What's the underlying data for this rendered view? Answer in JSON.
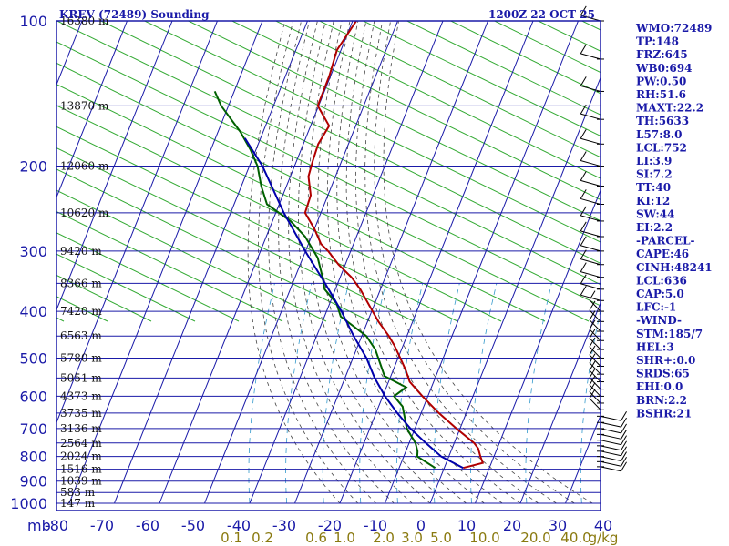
{
  "chart_data": {
    "type": "line",
    "title": "KREV (72489) Sounding",
    "datetime": "1200Z 22 OCT 25",
    "y_axis": {
      "scale": "log-pressure",
      "unit": "mb",
      "range": [
        1000,
        100
      ],
      "ticks": [
        "100",
        "200",
        "300",
        "400",
        "500",
        "600",
        "700",
        "800",
        "900",
        "1000"
      ]
    },
    "x_axis": {
      "unit": "C",
      "range": [
        -80,
        40
      ],
      "skew": true,
      "ticks": [
        "-80",
        "-70",
        "-60",
        "-50",
        "-40",
        "-30",
        "-20",
        "-10",
        "0",
        "10",
        "20",
        "30",
        "40"
      ],
      "unit_label": "mb"
    },
    "mixing_ratio_labels": [
      "0.1",
      "0.2",
      "0.6",
      "1.0",
      "2.0",
      "3.0",
      "5.0",
      "10.0",
      "20.0",
      "40.0",
      "g/kg"
    ],
    "height_labels": [
      {
        "p": 100,
        "text": "16380 m"
      },
      {
        "p": 150,
        "text": "13870 m"
      },
      {
        "p": 200,
        "text": "12060 m"
      },
      {
        "p": 250,
        "text": "10620 m"
      },
      {
        "p": 300,
        "text": "9420 m"
      },
      {
        "p": 350,
        "text": "8366 m"
      },
      {
        "p": 400,
        "text": "7420 m"
      },
      {
        "p": 450,
        "text": "6563 m"
      },
      {
        "p": 500,
        "text": "5780 m"
      },
      {
        "p": 550,
        "text": "5051 m"
      },
      {
        "p": 600,
        "text": "4373 m"
      },
      {
        "p": 650,
        "text": "3735 m"
      },
      {
        "p": 700,
        "text": "3136 m"
      },
      {
        "p": 750,
        "text": "2564 m"
      },
      {
        "p": 800,
        "text": "2024 m"
      },
      {
        "p": 850,
        "text": "1516 m"
      },
      {
        "p": 900,
        "text": "1039 m"
      },
      {
        "p": 950,
        "text": "583 m"
      },
      {
        "p": 1000,
        "text": "147 m"
      }
    ],
    "series": [
      {
        "name": "Temperature",
        "color": "#b00000",
        "points": [
          [
            845,
            4.2
          ],
          [
            825,
            8.1
          ],
          [
            800,
            7.0
          ],
          [
            770,
            5.8
          ],
          [
            750,
            4.4
          ],
          [
            700,
            -0.8
          ],
          [
            650,
            -6.1
          ],
          [
            600,
            -11.2
          ],
          [
            560,
            -15.3
          ],
          [
            530,
            -17.2
          ],
          [
            500,
            -19.5
          ],
          [
            470,
            -22.0
          ],
          [
            450,
            -24.0
          ],
          [
            420,
            -27.6
          ],
          [
            400,
            -29.8
          ],
          [
            360,
            -34.5
          ],
          [
            340,
            -37.5
          ],
          [
            320,
            -41.5
          ],
          [
            300,
            -45.0
          ],
          [
            290,
            -47.2
          ],
          [
            270,
            -50.0
          ],
          [
            250,
            -53.5
          ],
          [
            230,
            -53.8
          ],
          [
            210,
            -56.0
          ],
          [
            195,
            -56.4
          ],
          [
            180,
            -56.7
          ],
          [
            165,
            -55.9
          ],
          [
            150,
            -60.2
          ],
          [
            130,
            -60.3
          ],
          [
            115,
            -60.9
          ],
          [
            100,
            -59.2
          ]
        ]
      },
      {
        "name": "Dewpoint",
        "color": "#006000",
        "points": [
          [
            845,
            -2.0
          ],
          [
            800,
            -7.0
          ],
          [
            780,
            -7.4
          ],
          [
            750,
            -8.6
          ],
          [
            700,
            -11.8
          ],
          [
            630,
            -14.7
          ],
          [
            600,
            -17.5
          ],
          [
            575,
            -15.6
          ],
          [
            545,
            -21.4
          ],
          [
            510,
            -23.7
          ],
          [
            480,
            -25.8
          ],
          [
            450,
            -29.0
          ],
          [
            410,
            -36.4
          ],
          [
            385,
            -38.5
          ],
          [
            360,
            -42.4
          ],
          [
            340,
            -43.9
          ],
          [
            310,
            -46.7
          ],
          [
            300,
            -48.2
          ],
          [
            280,
            -51.4
          ],
          [
            260,
            -56.0
          ],
          [
            240,
            -62.7
          ],
          [
            220,
            -65.6
          ],
          [
            200,
            -68.2
          ],
          [
            185,
            -71.2
          ],
          [
            170,
            -75.0
          ],
          [
            150,
            -81.6
          ],
          [
            140,
            -84.3
          ]
        ]
      },
      {
        "name": "Parcel",
        "color": "#0000aa",
        "points": [
          [
            845,
            4.2
          ],
          [
            800,
            -1.7
          ],
          [
            750,
            -6.3
          ],
          [
            700,
            -11.0
          ],
          [
            650,
            -15.3
          ],
          [
            600,
            -19.5
          ],
          [
            550,
            -23.4
          ],
          [
            500,
            -27.0
          ],
          [
            450,
            -31.8
          ],
          [
            400,
            -36.7
          ],
          [
            350,
            -42.8
          ],
          [
            300,
            -50.1
          ],
          [
            250,
            -58.2
          ],
          [
            200,
            -67.1
          ],
          [
            175,
            -73.5
          ]
        ]
      }
    ]
  },
  "indices": [
    "WMO:72489",
    "TP:148",
    "FRZ:645",
    "WB0:694",
    "PW:0.50",
    "RH:51.6",
    "MAXT:22.2",
    "TH:5633",
    "L57:8.0",
    "LCL:752",
    "LI:3.9",
    "SI:7.2",
    "TT:40",
    "KI:12",
    "SW:44",
    "EI:2.2",
    "-PARCEL-",
    "CAPE:46",
    "CINH:48241",
    "LCL:636",
    "CAP:5.0",
    "LFC:-1",
    "-WIND-",
    "STM:185/7",
    "HEL:3",
    "SHR+:0.0",
    "SRDS:65",
    "EHI:0.0",
    "BRN:2.2",
    "BSHR:21"
  ],
  "colors": {
    "frame": "#1a1aa8",
    "dry_adiabat": "#33aa33",
    "wet_adiabat": "#444444",
    "mixing_ratio": "#3399cc",
    "isotherm": "#1a1aa8",
    "wind": "#000000"
  }
}
